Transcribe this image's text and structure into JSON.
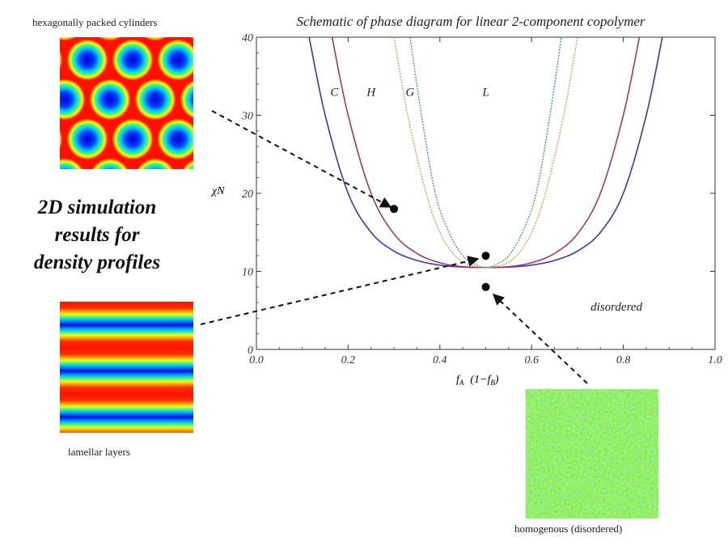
{
  "chart_data": {
    "type": "line",
    "title": "Schematic of phase diagram for linear 2-component copolymer",
    "xlabel": "f",
    "xlabel_sub": "A",
    "xlabel_paren": "(1−f",
    "xlabel_paren_sub": "B",
    "xlabel_close": ")",
    "ylabel": "χN",
    "xlim": [
      0,
      1
    ],
    "ylim": [
      0,
      40
    ],
    "xticks": [
      "0.0",
      "0.2",
      "0.4",
      "0.6",
      "0.8",
      "1.0"
    ],
    "yticks": [
      "0",
      "10",
      "20",
      "30",
      "40"
    ],
    "series": [
      {
        "color": "#3b3ba0",
        "dashed": false,
        "points": [
          [
            0.115,
            40
          ],
          [
            0.15,
            30
          ],
          [
            0.2,
            20
          ],
          [
            0.25,
            15
          ],
          [
            0.3,
            12.6
          ],
          [
            0.35,
            11.4
          ],
          [
            0.4,
            10.8
          ],
          [
            0.45,
            10.55
          ],
          [
            0.5,
            10.5
          ],
          [
            0.55,
            10.55
          ],
          [
            0.6,
            10.8
          ],
          [
            0.65,
            11.4
          ],
          [
            0.7,
            12.6
          ],
          [
            0.75,
            15
          ],
          [
            0.8,
            20
          ],
          [
            0.85,
            30
          ],
          [
            0.885,
            40
          ]
        ]
      },
      {
        "color": "#9a3a6a",
        "dashed": false,
        "points": [
          [
            0.165,
            40
          ],
          [
            0.2,
            30
          ],
          [
            0.25,
            20
          ],
          [
            0.3,
            14.8
          ],
          [
            0.35,
            12.3
          ],
          [
            0.4,
            11.1
          ],
          [
            0.45,
            10.6
          ],
          [
            0.5,
            10.5
          ],
          [
            0.55,
            10.6
          ],
          [
            0.6,
            11.1
          ],
          [
            0.65,
            12.3
          ],
          [
            0.7,
            14.8
          ],
          [
            0.75,
            20
          ],
          [
            0.8,
            30
          ],
          [
            0.835,
            40
          ]
        ]
      },
      {
        "color": "#b8a85a",
        "dashed": true,
        "points": [
          [
            0.3,
            40
          ],
          [
            0.33,
            30
          ],
          [
            0.37,
            20
          ],
          [
            0.4,
            15
          ],
          [
            0.43,
            12.2
          ],
          [
            0.46,
            10.9
          ],
          [
            0.5,
            10.5
          ],
          [
            0.54,
            10.9
          ],
          [
            0.57,
            12.2
          ],
          [
            0.6,
            15
          ],
          [
            0.63,
            20
          ],
          [
            0.67,
            30
          ],
          [
            0.7,
            40
          ]
        ]
      },
      {
        "color": "#4a9a6a",
        "dashed": true,
        "points": [
          [
            0.335,
            40
          ],
          [
            0.36,
            30
          ],
          [
            0.39,
            20
          ],
          [
            0.42,
            15
          ],
          [
            0.45,
            12
          ],
          [
            0.48,
            10.8
          ],
          [
            0.5,
            10.5
          ],
          [
            0.52,
            10.8
          ],
          [
            0.55,
            12
          ],
          [
            0.58,
            15
          ],
          [
            0.61,
            20
          ],
          [
            0.64,
            30
          ],
          [
            0.665,
            40
          ]
        ]
      }
    ],
    "points": [
      [
        0.3,
        18
      ],
      [
        0.5,
        12
      ],
      [
        0.5,
        8
      ]
    ],
    "region_labels": [
      {
        "text": "C",
        "x": 0.17,
        "y": 32.5
      },
      {
        "text": "H",
        "x": 0.25,
        "y": 32.5
      },
      {
        "text": "G",
        "x": 0.335,
        "y": 32.5
      },
      {
        "text": "L",
        "x": 0.5,
        "y": 32.5
      },
      {
        "text": "disordered",
        "x": 0.785,
        "y": 5
      }
    ]
  },
  "panels": {
    "hex": {
      "title": "hexagonally packed cylinders"
    },
    "lamellar": {
      "title": "lamellar layers"
    },
    "homogenous": {
      "title": "homogenous (disordered)"
    }
  },
  "side_text": {
    "line1": "2D simulation",
    "line2": "results for",
    "line3": "density profiles"
  }
}
